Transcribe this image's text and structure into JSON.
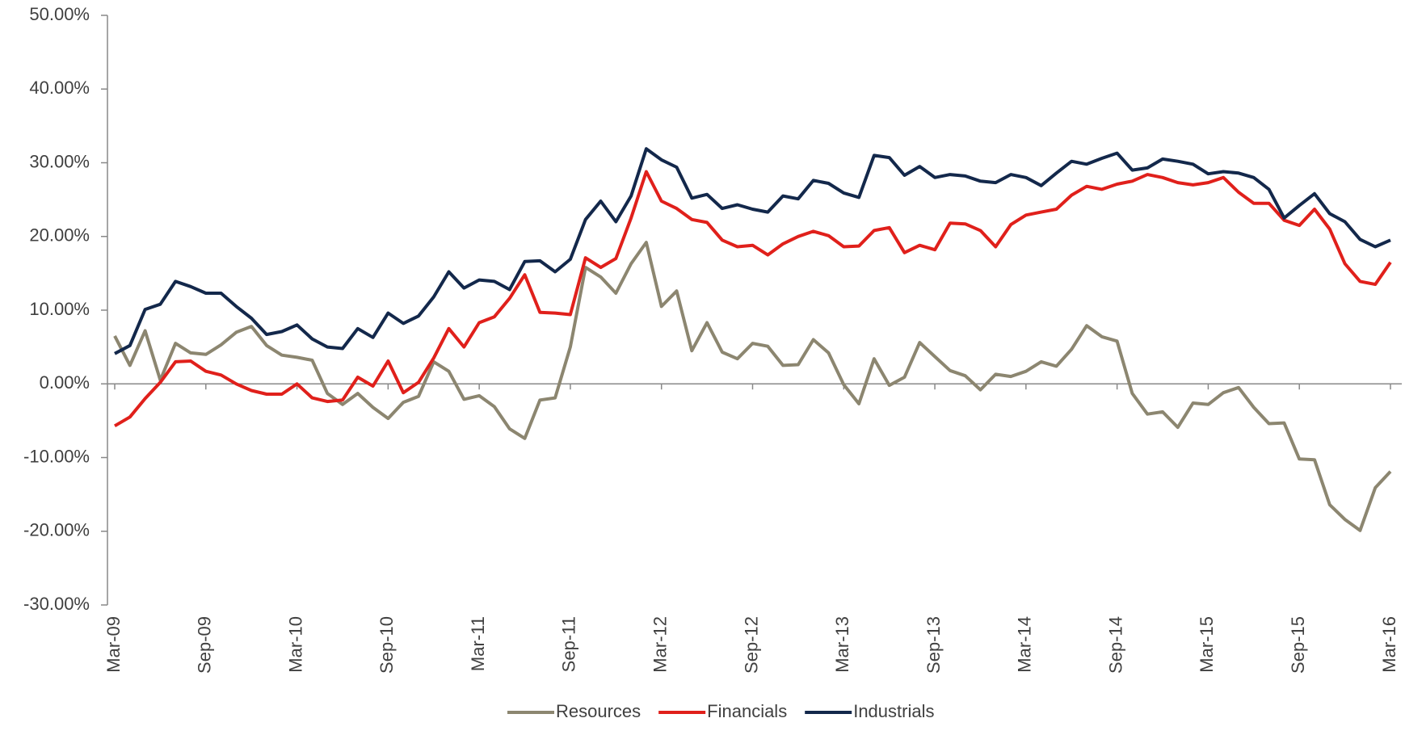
{
  "chart_data": {
    "type": "line",
    "categories": [
      "Mar-09",
      null,
      null,
      null,
      null,
      null,
      "Sep-09",
      null,
      null,
      null,
      null,
      null,
      "Mar-10",
      null,
      null,
      null,
      null,
      null,
      "Sep-10",
      null,
      null,
      null,
      null,
      null,
      "Mar-11",
      null,
      null,
      null,
      null,
      null,
      "Sep-11",
      null,
      null,
      null,
      null,
      null,
      "Mar-12",
      null,
      null,
      null,
      null,
      null,
      "Sep-12",
      null,
      null,
      null,
      null,
      null,
      "Mar-13",
      null,
      null,
      null,
      null,
      null,
      "Sep-13",
      null,
      null,
      null,
      null,
      null,
      "Mar-14",
      null,
      null,
      null,
      null,
      null,
      "Sep-14",
      null,
      null,
      null,
      null,
      null,
      "Mar-15",
      null,
      null,
      null,
      null,
      null,
      "Sep-15",
      null,
      null,
      null,
      null,
      null,
      "Mar-16"
    ],
    "series": [
      {
        "name": "Resources",
        "color": "#8c8670",
        "values": [
          6.5,
          2.5,
          7.2,
          0.5,
          5.5,
          4.2,
          4.0,
          5.3,
          7.0,
          7.8,
          5.2,
          3.9,
          3.6,
          3.2,
          -1.3,
          -2.8,
          -1.3,
          -3.2,
          -4.7,
          -2.5,
          -1.7,
          3.0,
          1.7,
          -2.1,
          -1.6,
          -3.1,
          -6.1,
          -7.4,
          -2.2,
          -1.9,
          5.0,
          15.8,
          14.5,
          12.3,
          16.3,
          19.2,
          10.5,
          12.6,
          4.5,
          8.3,
          4.3,
          3.4,
          5.5,
          5.1,
          2.5,
          2.6,
          6.0,
          4.2,
          -0.1,
          -2.7,
          3.4,
          -0.2,
          0.9,
          5.6,
          3.7,
          1.8,
          1.1,
          -0.8,
          1.3,
          1.0,
          1.7,
          3.0,
          2.4,
          4.7,
          7.9,
          6.4,
          5.8,
          -1.3,
          -4.1,
          -3.8,
          -5.9,
          -2.6,
          -2.8,
          -1.2,
          -0.5,
          -3.2,
          -5.4,
          -5.3,
          -10.2,
          -10.3,
          -16.4,
          -18.4,
          -19.9,
          -14.1,
          -11.9
        ]
      },
      {
        "name": "Financials",
        "color": "#e0201b",
        "values": [
          -5.7,
          -4.5,
          -2.0,
          0.2,
          3.0,
          3.1,
          1.7,
          1.2,
          0.0,
          -0.9,
          -1.4,
          -1.4,
          0.0,
          -1.9,
          -2.4,
          -2.2,
          0.9,
          -0.3,
          3.1,
          -1.2,
          0.2,
          3.5,
          7.5,
          5.0,
          8.3,
          9.1,
          11.6,
          14.8,
          9.7,
          9.6,
          9.4,
          17.1,
          15.8,
          17.0,
          22.5,
          28.8,
          24.8,
          23.8,
          22.3,
          21.9,
          19.5,
          18.6,
          18.8,
          17.5,
          19.0,
          20.0,
          20.7,
          20.1,
          18.6,
          18.7,
          20.8,
          21.2,
          17.8,
          18.8,
          18.2,
          21.8,
          21.7,
          20.8,
          18.6,
          21.6,
          22.9,
          23.3,
          23.7,
          25.6,
          26.8,
          26.4,
          27.1,
          27.5,
          28.4,
          28.0,
          27.3,
          27.0,
          27.3,
          28.0,
          26.0,
          24.5,
          24.5,
          22.2,
          21.5,
          23.7,
          21.0,
          16.3,
          13.9,
          13.5,
          16.5
        ]
      },
      {
        "name": "Industrials",
        "color": "#13284b",
        "values": [
          4.1,
          5.2,
          10.1,
          10.8,
          13.9,
          13.2,
          12.3,
          12.3,
          10.5,
          8.9,
          6.7,
          7.1,
          8.0,
          6.1,
          5.0,
          4.8,
          7.5,
          6.3,
          9.6,
          8.2,
          9.2,
          11.8,
          15.2,
          13.0,
          14.1,
          13.9,
          12.8,
          16.6,
          16.7,
          15.2,
          16.9,
          22.3,
          24.8,
          22.0,
          25.5,
          31.9,
          30.4,
          29.4,
          25.2,
          25.7,
          23.8,
          24.3,
          23.7,
          23.3,
          25.5,
          25.1,
          27.6,
          27.2,
          25.9,
          25.3,
          31.0,
          30.7,
          28.3,
          29.5,
          28.0,
          28.4,
          28.2,
          27.5,
          27.3,
          28.4,
          28.0,
          26.9,
          28.6,
          30.2,
          29.8,
          30.6,
          31.3,
          29.0,
          29.3,
          30.5,
          30.2,
          29.8,
          28.5,
          28.8,
          28.6,
          28.0,
          26.4,
          22.5,
          24.2,
          25.8,
          23.1,
          22.0,
          19.6,
          18.6,
          19.5
        ]
      }
    ],
    "ylim": [
      -30,
      50
    ],
    "yticks": [
      {
        "value": -30,
        "label": "-30.00%"
      },
      {
        "value": -20,
        "label": "-20.00%"
      },
      {
        "value": -10,
        "label": "-10.00%"
      },
      {
        "value": 0,
        "label": "0.00%"
      },
      {
        "value": 10,
        "label": "10.00%"
      },
      {
        "value": 20,
        "label": "20.00%"
      },
      {
        "value": 30,
        "label": "30.00%"
      },
      {
        "value": 40,
        "label": "40.00%"
      },
      {
        "value": 50,
        "label": "50.00%"
      }
    ],
    "grid": false
  }
}
